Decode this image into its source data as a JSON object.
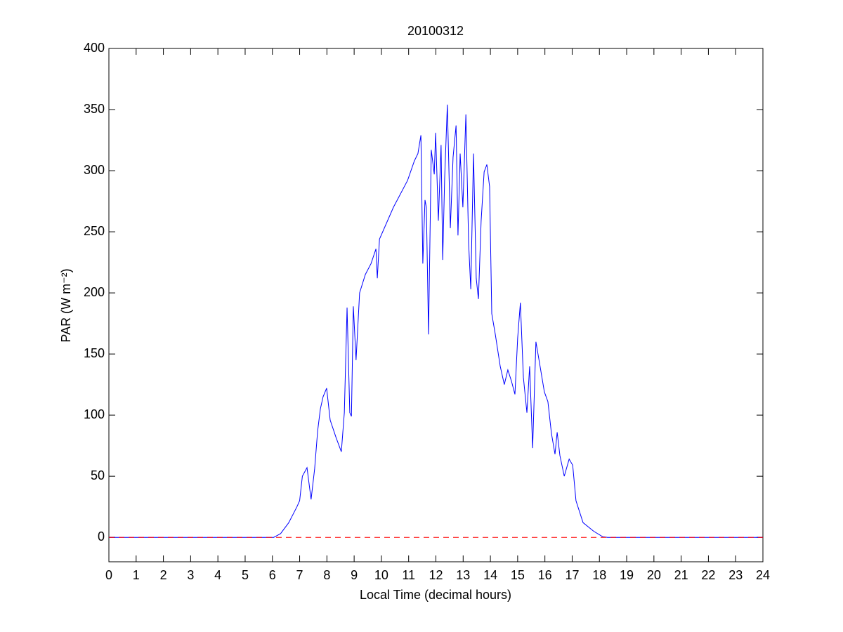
{
  "chart_data": {
    "type": "line",
    "title": "20100312",
    "xlabel": "Local Time (decimal hours)",
    "ylabel": "PAR (W m⁻²)",
    "xlim": [
      0,
      24
    ],
    "ylim": [
      -20,
      400
    ],
    "xticks": [
      0,
      1,
      2,
      3,
      4,
      5,
      6,
      7,
      8,
      9,
      10,
      11,
      12,
      13,
      14,
      15,
      16,
      17,
      18,
      19,
      20,
      21,
      22,
      23,
      24
    ],
    "yticks": [
      0,
      50,
      100,
      150,
      200,
      250,
      300,
      350,
      400
    ],
    "series": [
      {
        "color": "#0000ff",
        "dash": false,
        "x": [
          0,
          6.05,
          6.3,
          6.6,
          6.9,
          7.0,
          7.1,
          7.27,
          7.42,
          7.55,
          7.66,
          7.76,
          7.86,
          7.99,
          8.12,
          8.33,
          8.53,
          8.64,
          8.74,
          8.84,
          8.9,
          8.97,
          9.07,
          9.2,
          9.41,
          9.62,
          9.8,
          9.85,
          9.93,
          10.44,
          10.96,
          11.21,
          11.34,
          11.45,
          11.52,
          11.6,
          11.65,
          11.73,
          11.83,
          11.94,
          11.99,
          12.09,
          12.19,
          12.25,
          12.32,
          12.42,
          12.53,
          12.63,
          12.74,
          12.81,
          12.89,
          12.99,
          13.1,
          13.2,
          13.28,
          13.38,
          13.48,
          13.56,
          13.66,
          13.77,
          13.87,
          13.97,
          14.05,
          14.18,
          14.36,
          14.51,
          14.64,
          14.77,
          14.9,
          15.0,
          15.1,
          15.21,
          15.34,
          15.44,
          15.55,
          15.67,
          15.8,
          15.98,
          16.11,
          16.24,
          16.37,
          16.45,
          16.55,
          16.71,
          16.89,
          17.02,
          17.14,
          17.4,
          17.79,
          18.12,
          18.3,
          24
        ],
        "values": [
          0,
          0,
          3,
          12,
          25,
          30,
          50,
          57,
          31,
          56,
          87,
          105,
          115,
          122,
          96,
          82,
          70,
          102,
          188,
          102,
          99,
          189,
          145,
          200,
          215,
          224,
          236,
          212,
          244,
          270,
          292,
          308,
          314,
          329,
          224,
          276,
          270,
          166,
          317,
          297,
          331,
          259,
          321,
          227,
          293,
          354,
          253,
          311,
          337,
          247,
          314,
          270,
          346,
          241,
          203,
          314,
          212,
          195,
          259,
          299,
          305,
          287,
          183,
          166,
          140,
          125,
          137,
          128,
          117,
          163,
          192,
          131,
          102,
          140,
          73,
          160,
          143,
          119,
          111,
          85,
          68,
          86,
          67,
          50,
          64,
          59,
          30,
          12,
          5,
          0.5,
          0,
          0
        ]
      },
      {
        "color": "#ff0000",
        "dash": true,
        "x": [
          0,
          24
        ],
        "values": [
          0,
          0
        ]
      }
    ]
  }
}
